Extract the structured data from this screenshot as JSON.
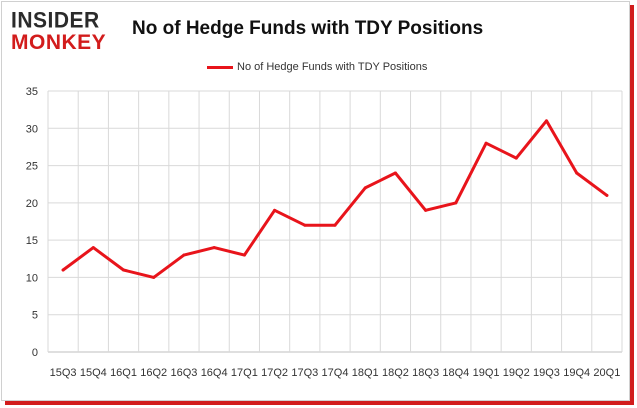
{
  "header": {
    "logo_top": "INSIDER",
    "logo_bottom": "MONKEY",
    "title": "No of Hedge Funds with TDY Positions"
  },
  "colors": {
    "line": "#e8141b",
    "grid": "#d9d9d9",
    "axis_text": "#333333",
    "brand_red": "#d21c1c"
  },
  "chart_data": {
    "type": "line",
    "title": "No of Hedge Funds with TDY Positions",
    "xlabel": "",
    "ylabel": "",
    "ylim": [
      0,
      35
    ],
    "yticks": [
      0,
      5,
      10,
      15,
      20,
      25,
      30,
      35
    ],
    "grid": true,
    "legend_position": "top-center",
    "categories": [
      "15Q3",
      "15Q4",
      "16Q1",
      "16Q2",
      "16Q3",
      "16Q4",
      "17Q1",
      "17Q2",
      "17Q3",
      "17Q4",
      "18Q1",
      "18Q2",
      "18Q3",
      "18Q4",
      "19Q1",
      "19Q2",
      "19Q3",
      "19Q4",
      "20Q1"
    ],
    "series": [
      {
        "name": "No of Hedge Funds with TDY Positions",
        "values": [
          11,
          14,
          11,
          10,
          13,
          14,
          13,
          19,
          17,
          17,
          22,
          24,
          19,
          20,
          28,
          26,
          31,
          24,
          21
        ]
      }
    ]
  }
}
